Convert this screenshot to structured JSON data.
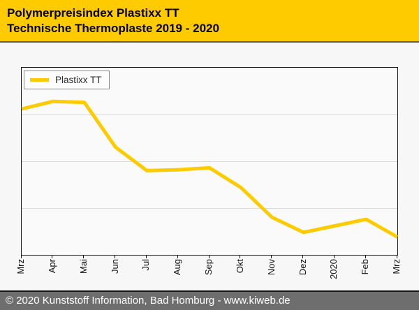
{
  "header": {
    "title_line1": "Polymerpreisindex Plastixx TT",
    "title_line2": "Technische Thermoplaste 2019 - 2020",
    "bg_color": "#FDCB00",
    "text_color": "#000000"
  },
  "legend": {
    "label": "Plastixx TT"
  },
  "footer": {
    "text": "© 2020 Kunststoff Information, Bad Homburg - www.kiweb.de",
    "bg_color": "#6e6e6e",
    "text_color": "#ffffff"
  },
  "chart_data": {
    "type": "line",
    "title": "Polymerpreisindex Plastixx TT - Technische Thermoplaste 2019 - 2020",
    "categories": [
      "Mrz",
      "Apr",
      "Mai",
      "Jun",
      "Jul",
      "Aug",
      "Sep",
      "Okt",
      "Nov",
      "Dez",
      "2020",
      "Feb",
      "Mrz"
    ],
    "series": [
      {
        "name": "Plastixx TT",
        "color": "#FDCB00",
        "values": [
          78,
          82,
          81.5,
          57.5,
          45,
          45.5,
          46.5,
          36,
          20,
          12,
          15.5,
          19,
          9.5
        ]
      }
    ],
    "xlabel": "",
    "ylabel": "",
    "ylim": [
      0,
      100
    ],
    "y_axis_labels_visible": false,
    "gridlines_y": [
      25,
      50,
      75
    ],
    "grid_color": "#d9d9d9",
    "legend_position": "top-left",
    "x_label_rotation_deg": -90
  }
}
